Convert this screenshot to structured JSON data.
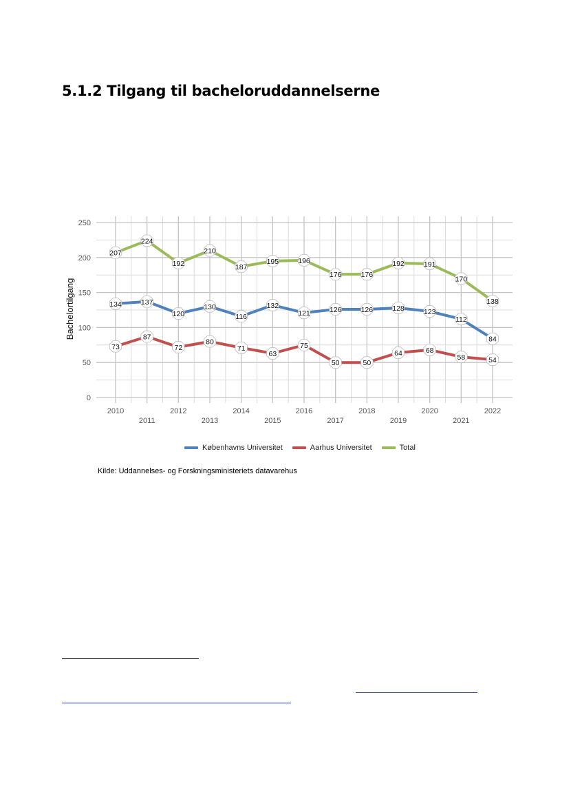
{
  "page": {
    "heading": "5.1.2 Tilgang til bacheloruddannelserne",
    "source": "Kilde: Uddannelses- og Forskningsministeriets datavarehus"
  },
  "chart_data": {
    "type": "line",
    "ylabel": "Bachelortilgang",
    "xlabel": "",
    "ylim": [
      0,
      250
    ],
    "yticks": [
      0,
      50,
      100,
      150,
      200,
      250
    ],
    "grid": true,
    "legend_position": "bottom",
    "x": [
      "2010",
      "2011",
      "2012",
      "2013",
      "2014",
      "2015",
      "2016",
      "2017",
      "2018",
      "2019",
      "2020",
      "2021",
      "2022"
    ],
    "series": [
      {
        "name": "Københavns Universitet",
        "color": "#4f81bd",
        "values": [
          134,
          137,
          120,
          130,
          116,
          132,
          121,
          126,
          126,
          128,
          123,
          112,
          84
        ]
      },
      {
        "name": "Aarhus Universitet",
        "color": "#c0504d",
        "values": [
          73,
          87,
          72,
          80,
          71,
          63,
          75,
          50,
          50,
          64,
          68,
          58,
          54
        ]
      },
      {
        "name": "Total",
        "color": "#9bbb59",
        "values": [
          207,
          224,
          192,
          210,
          187,
          195,
          196,
          176,
          176,
          192,
          191,
          170,
          138
        ]
      }
    ]
  }
}
